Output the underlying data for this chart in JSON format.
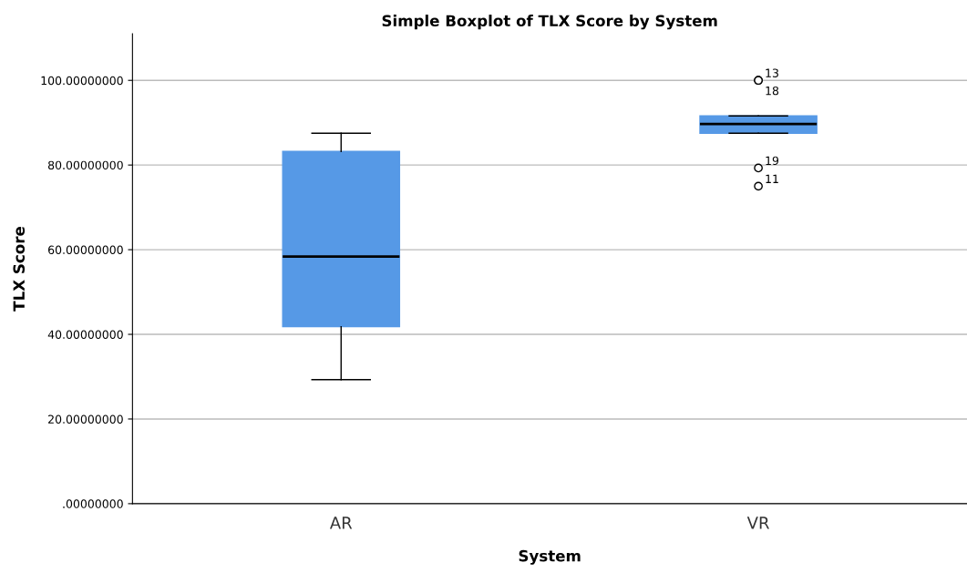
{
  "chart_data": {
    "type": "box",
    "title": "Simple Boxplot of TLX Score by System",
    "xlabel": "System",
    "ylabel": "TLX Score",
    "categories": [
      "AR",
      "VR"
    ],
    "color": "#5699e6",
    "boxes": [
      {
        "low": 29.3,
        "q1": 41.8,
        "median": 58.4,
        "q3": 83.2,
        "high": 87.5
      },
      {
        "low": 87.5,
        "q1": 87.5,
        "median": 89.7,
        "q3": 91.6,
        "high": 91.6,
        "outliers": [
          100,
          100,
          79.3,
          75.0
        ]
      }
    ],
    "ylim": [
      0,
      111
    ],
    "yticks": [
      {
        "value": 0,
        "label": ".00000000"
      },
      {
        "value": 20,
        "label": "20.00000000"
      },
      {
        "value": 40,
        "label": "40.00000000"
      },
      {
        "value": 60,
        "label": "60.00000000"
      },
      {
        "value": 80,
        "label": "80.00000000"
      },
      {
        "value": 100,
        "label": "100.00000000"
      }
    ],
    "grid": "y",
    "annotations": [
      "13",
      "18",
      "19",
      "11"
    ]
  }
}
